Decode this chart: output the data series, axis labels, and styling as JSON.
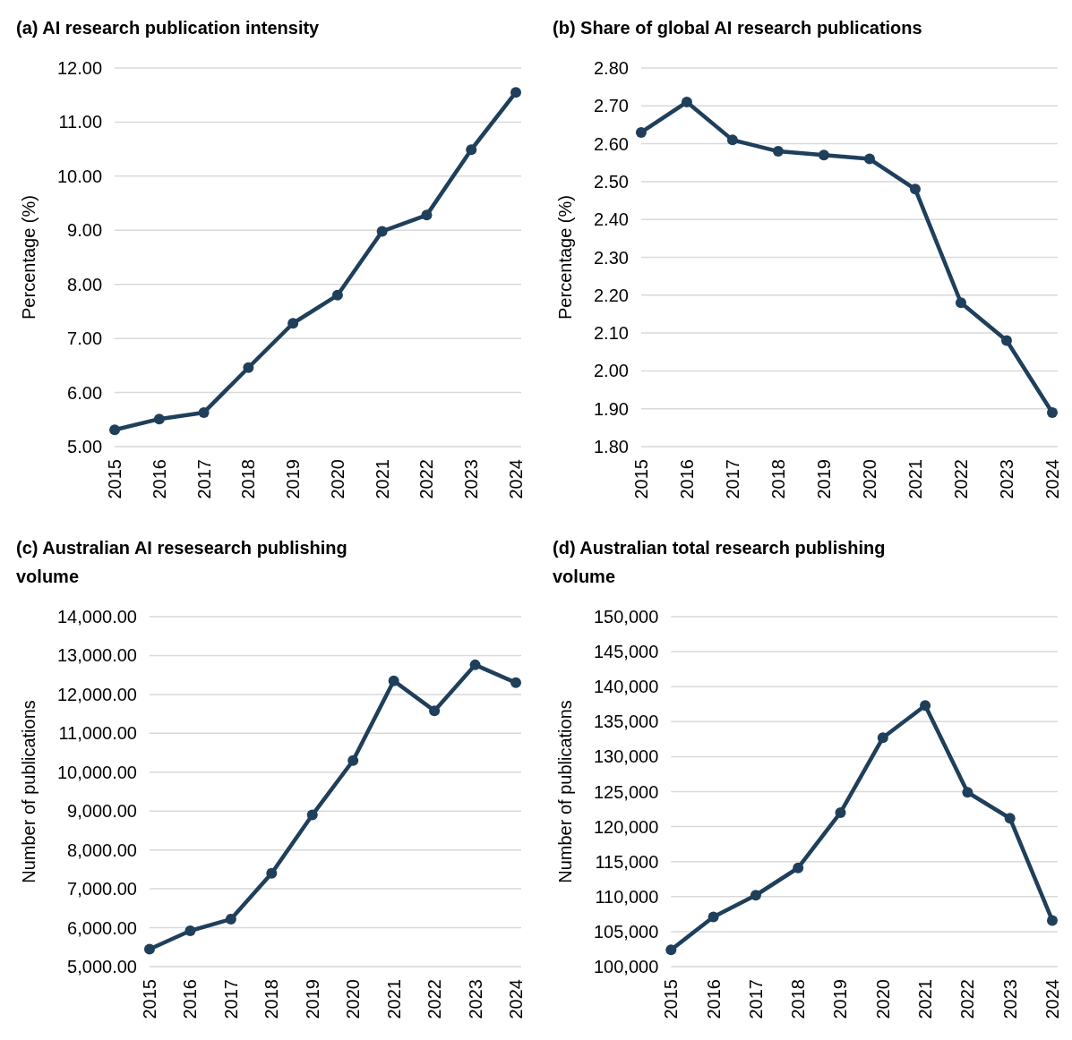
{
  "chart_data": [
    {
      "type": "line",
      "title": "(a) AI research publication intensity",
      "ylabel": "Percentage (%)",
      "categories": [
        "2015",
        "2016",
        "2017",
        "2018",
        "2019",
        "2020",
        "2021",
        "2022",
        "2023",
        "2024"
      ],
      "series": [
        {
          "color": "#1f3f5b",
          "values": [
            5.31,
            5.51,
            5.63,
            6.46,
            7.28,
            7.8,
            8.98,
            9.28,
            10.49,
            11.55
          ]
        }
      ],
      "ylim": [
        5,
        12
      ],
      "yticks": [
        {
          "value": 5,
          "label": "5.00"
        },
        {
          "value": 6,
          "label": "6.00"
        },
        {
          "value": 7,
          "label": "7.00"
        },
        {
          "value": 8,
          "label": "8.00"
        },
        {
          "value": 9,
          "label": "9.00"
        },
        {
          "value": 10,
          "label": "10.00"
        },
        {
          "value": 11,
          "label": "11.00"
        },
        {
          "value": 12,
          "label": "12.00"
        }
      ],
      "grid": "y",
      "marker": "circle",
      "line_style": "solid"
    },
    {
      "type": "line",
      "title": "(b) Share of global AI research publications",
      "ylabel": "Percentage (%)",
      "categories": [
        "2015",
        "2016",
        "2017",
        "2018",
        "2019",
        "2020",
        "2021",
        "2022",
        "2023",
        "2024"
      ],
      "series": [
        {
          "color": "#1f3f5b",
          "values": [
            2.63,
            2.71,
            2.61,
            2.58,
            2.57,
            2.56,
            2.48,
            2.18,
            2.08,
            1.89
          ]
        }
      ],
      "ylim": [
        1.8,
        2.8
      ],
      "yticks": [
        {
          "value": 1.8,
          "label": "1.80"
        },
        {
          "value": 1.9,
          "label": "1.90"
        },
        {
          "value": 2,
          "label": "2.00"
        },
        {
          "value": 2.1,
          "label": "2.10"
        },
        {
          "value": 2.2,
          "label": "2.20"
        },
        {
          "value": 2.3,
          "label": "2.30"
        },
        {
          "value": 2.4,
          "label": "2.40"
        },
        {
          "value": 2.5,
          "label": "2.50"
        },
        {
          "value": 2.6,
          "label": "2.60"
        },
        {
          "value": 2.7,
          "label": "2.70"
        },
        {
          "value": 2.8,
          "label": "2.80"
        }
      ],
      "grid": "y",
      "marker": "circle",
      "line_style": "solid"
    },
    {
      "type": "line",
      "title": "(c) Australian AI resesearch publishing volume",
      "ylabel": "Number of publications",
      "categories": [
        "2015",
        "2016",
        "2017",
        "2018",
        "2019",
        "2020",
        "2021",
        "2022",
        "2023",
        "2024"
      ],
      "series": [
        {
          "color": "#1f3f5b",
          "values": [
            5450,
            5920,
            6220,
            7400,
            8900,
            10300,
            12350,
            11580,
            12760,
            12300
          ]
        }
      ],
      "ylim": [
        5000,
        14000
      ],
      "yticks": [
        {
          "value": 5000,
          "label": "5,000.00"
        },
        {
          "value": 6000,
          "label": "6,000.00"
        },
        {
          "value": 7000,
          "label": "7,000.00"
        },
        {
          "value": 8000,
          "label": "8,000.00"
        },
        {
          "value": 9000,
          "label": "9,000.00"
        },
        {
          "value": 10000,
          "label": "10,000.00"
        },
        {
          "value": 11000,
          "label": "11,000.00"
        },
        {
          "value": 12000,
          "label": "12,000.00"
        },
        {
          "value": 13000,
          "label": "13,000.00"
        },
        {
          "value": 14000,
          "label": "14,000.00"
        }
      ],
      "grid": "y",
      "marker": "circle",
      "line_style": "solid"
    },
    {
      "type": "line",
      "title": "(d) Australian total research publishing volume",
      "ylabel": "Number of publications",
      "categories": [
        "2015",
        "2016",
        "2017",
        "2018",
        "2019",
        "2020",
        "2021",
        "2022",
        "2023",
        "2024"
      ],
      "series": [
        {
          "color": "#1f3f5b",
          "values": [
            102400,
            107100,
            110200,
            114100,
            122000,
            132700,
            137300,
            124900,
            121200,
            106600
          ]
        }
      ],
      "ylim": [
        100000,
        150000
      ],
      "yticks": [
        {
          "value": 100000,
          "label": "100,000"
        },
        {
          "value": 105000,
          "label": "105,000"
        },
        {
          "value": 110000,
          "label": "110,000"
        },
        {
          "value": 115000,
          "label": "115,000"
        },
        {
          "value": 120000,
          "label": "120,000"
        },
        {
          "value": 125000,
          "label": "125,000"
        },
        {
          "value": 130000,
          "label": "130,000"
        },
        {
          "value": 135000,
          "label": "135,000"
        },
        {
          "value": 140000,
          "label": "140,000"
        },
        {
          "value": 145000,
          "label": "145,000"
        },
        {
          "value": 150000,
          "label": "150,000"
        }
      ],
      "grid": "y",
      "marker": "circle",
      "line_style": "solid"
    }
  ]
}
